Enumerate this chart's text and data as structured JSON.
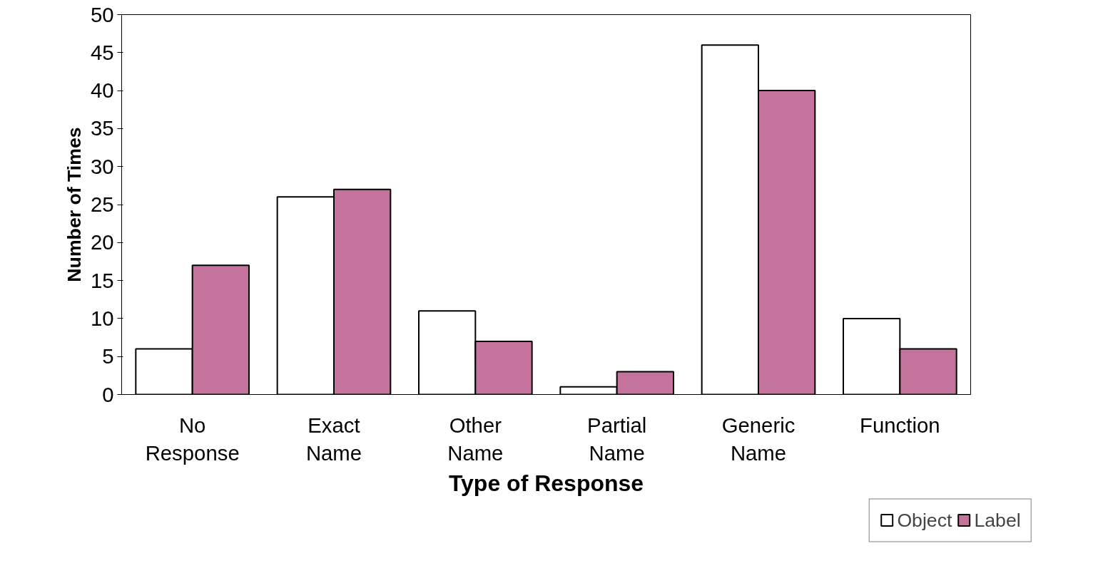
{
  "chart_data": {
    "type": "bar",
    "xlabel": "Type of Response",
    "ylabel": "Number of Times",
    "categories": [
      "No Response",
      "Exact Name",
      "Other Name",
      "Partial Name",
      "Generic Name",
      "Function"
    ],
    "series": [
      {
        "name": "Object",
        "color": "#ffffff",
        "values": [
          6,
          26,
          11,
          1,
          46,
          10
        ]
      },
      {
        "name": "Label",
        "color": "#c4739c",
        "values": [
          17,
          27,
          7,
          3,
          40,
          6
        ]
      }
    ],
    "ylim": [
      0,
      50
    ],
    "yticks": [
      0,
      5,
      10,
      15,
      20,
      25,
      30,
      35,
      40,
      45,
      50
    ],
    "grid": false,
    "legend": "bottom right"
  }
}
